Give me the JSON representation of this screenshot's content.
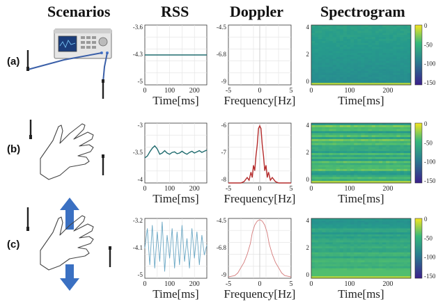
{
  "headers": {
    "scenarios": "Scenarios",
    "rss": "RSS",
    "doppler": "Doppler",
    "spectrogram": "Spectrogram"
  },
  "rows": [
    {
      "label": "(a)"
    },
    {
      "label": "(b)"
    },
    {
      "label": "(c)"
    }
  ],
  "colors": {
    "rss_line": "#1f6b6e",
    "rss_line_noisy": "#6aa7c4",
    "doppler_line": "#b42a2a",
    "doppler_line_light": "#d47a7a",
    "arrow": "#3a70c2"
  },
  "chart_data": [
    {
      "type": "line",
      "row": "a",
      "panel": "rss",
      "xlabel": "Time[ms]",
      "x_ticks": [
        "0",
        "100",
        "200"
      ],
      "xlim": [
        0,
        250
      ],
      "y_ticks": [
        "-3.6",
        "-4.3",
        "-5"
      ],
      "ylim": [
        -5,
        -3.6
      ],
      "series": [
        {
          "x": [
            0,
            250
          ],
          "y": [
            -4.3,
            -4.3
          ]
        }
      ]
    },
    {
      "type": "line",
      "row": "a",
      "panel": "doppler",
      "xlabel": "Frequency[Hz]",
      "x_ticks": [
        "-5",
        "0",
        "5"
      ],
      "xlim": [
        -5,
        5
      ],
      "y_ticks": [
        "-4.5",
        "-6.8",
        "-9"
      ],
      "ylim": [
        -9,
        -4.5
      ],
      "series": []
    },
    {
      "type": "heatmap",
      "row": "a",
      "panel": "spectrogram",
      "xlabel": "Time[ms]",
      "x_ticks": [
        "0",
        "100",
        "200"
      ],
      "xlim": [
        0,
        260
      ],
      "y_ticks": [
        "4",
        "2",
        "0"
      ],
      "ylim": [
        0,
        4
      ],
      "colorbar_ticks": [
        "0",
        "-50",
        "-100",
        "-150"
      ],
      "clim": [
        -150,
        0
      ],
      "pattern": "uniform"
    },
    {
      "type": "line",
      "row": "b",
      "panel": "rss",
      "xlabel": "Time[ms]",
      "x_ticks": [
        "0",
        "100",
        "200"
      ],
      "xlim": [
        0,
        250
      ],
      "y_ticks": [
        "-3",
        "-3.5",
        "-4"
      ],
      "ylim": [
        -4,
        -3
      ],
      "series": [
        {
          "x": [
            0,
            10,
            20,
            30,
            40,
            50,
            60,
            70,
            80,
            90,
            100,
            110,
            120,
            130,
            140,
            150,
            160,
            170,
            180,
            190,
            200,
            210,
            220,
            230,
            240,
            250
          ],
          "y": [
            -3.58,
            -3.55,
            -3.48,
            -3.42,
            -3.38,
            -3.43,
            -3.52,
            -3.5,
            -3.46,
            -3.5,
            -3.52,
            -3.49,
            -3.48,
            -3.51,
            -3.5,
            -3.47,
            -3.5,
            -3.52,
            -3.49,
            -3.47,
            -3.5,
            -3.48,
            -3.46,
            -3.49,
            -3.47,
            -3.45
          ]
        }
      ]
    },
    {
      "type": "line",
      "row": "b",
      "panel": "doppler",
      "xlabel": "Frequency[Hz]",
      "x_ticks": [
        "-5",
        "0",
        "5"
      ],
      "xlim": [
        -5,
        5
      ],
      "y_ticks": [
        "-6",
        "-7",
        "-8"
      ],
      "ylim": [
        -8,
        -5.8
      ],
      "series": [
        {
          "x": [
            -5,
            -3,
            -2.5,
            -2,
            -1.7,
            -1.4,
            -1.2,
            -1,
            -0.8,
            -0.6,
            -0.4,
            -0.2,
            0,
            0.2,
            0.4,
            0.6,
            0.8,
            1,
            1.2,
            1.4,
            1.7,
            2,
            2.5,
            3,
            5
          ],
          "y": [
            -8,
            -8,
            -7.95,
            -7.8,
            -7.9,
            -7.6,
            -7.8,
            -7.35,
            -7.55,
            -7.0,
            -6.6,
            -6.0,
            -5.9,
            -6.0,
            -6.6,
            -7.0,
            -7.55,
            -7.35,
            -7.8,
            -7.6,
            -7.9,
            -7.8,
            -7.95,
            -8,
            -8
          ]
        }
      ]
    },
    {
      "type": "heatmap",
      "row": "b",
      "panel": "spectrogram",
      "xlabel": "Time[ms]",
      "x_ticks": [
        "0",
        "100",
        "200"
      ],
      "xlim": [
        0,
        260
      ],
      "y_ticks": [
        "4",
        "2",
        "0"
      ],
      "ylim": [
        0,
        4
      ],
      "colorbar_ticks": [
        "0",
        "-50",
        "-100",
        "-150"
      ],
      "clim": [
        -150,
        0
      ],
      "pattern": "banded"
    },
    {
      "type": "line",
      "row": "c",
      "panel": "rss",
      "xlabel": "Time[ms]",
      "x_ticks": [
        "0",
        "100",
        "200"
      ],
      "xlim": [
        0,
        250
      ],
      "y_ticks": [
        "-3.2",
        "-4.1",
        "-5"
      ],
      "ylim": [
        -5,
        -3.2
      ],
      "series": [
        {
          "x": [
            0,
            10,
            20,
            30,
            40,
            50,
            60,
            70,
            80,
            90,
            100,
            110,
            120,
            130,
            140,
            150,
            160,
            170,
            180,
            190,
            200,
            210,
            220,
            230,
            240,
            250
          ],
          "y": [
            -4.1,
            -3.5,
            -4.6,
            -3.4,
            -4.7,
            -3.6,
            -4.5,
            -3.3,
            -4.8,
            -3.7,
            -4.4,
            -3.5,
            -4.7,
            -3.6,
            -4.6,
            -3.4,
            -4.5,
            -3.8,
            -4.7,
            -3.5,
            -4.4,
            -3.6,
            -4.6,
            -3.7,
            -4.3,
            -4.0
          ]
        }
      ]
    },
    {
      "type": "line",
      "row": "c",
      "panel": "doppler",
      "xlabel": "Frequency[Hz]",
      "x_ticks": [
        "-5",
        "0",
        "5"
      ],
      "xlim": [
        -5,
        5
      ],
      "y_ticks": [
        "-4.5",
        "-6.8",
        "-9"
      ],
      "ylim": [
        -9,
        -4.5
      ],
      "series": [
        {
          "x": [
            -5,
            -4,
            -3.5,
            -3,
            -2.5,
            -2,
            -1.5,
            -1.2,
            -0.8,
            -0.4,
            0,
            0.4,
            0.8,
            1.2,
            1.5,
            2,
            2.5,
            3,
            3.5,
            4,
            5
          ],
          "y": [
            -8.9,
            -8.8,
            -8.6,
            -8.2,
            -7.8,
            -7.2,
            -6.4,
            -5.6,
            -5.0,
            -4.7,
            -4.6,
            -4.7,
            -5.0,
            -5.6,
            -6.4,
            -7.2,
            -7.8,
            -8.2,
            -8.6,
            -8.8,
            -8.9
          ]
        }
      ]
    },
    {
      "type": "heatmap",
      "row": "c",
      "panel": "spectrogram",
      "xlabel": "Time[ms]",
      "x_ticks": [
        "0",
        "100",
        "200"
      ],
      "xlim": [
        0,
        260
      ],
      "y_ticks": [
        "4",
        "2",
        "0"
      ],
      "ylim": [
        0,
        4
      ],
      "colorbar_ticks": [
        "0",
        "-50",
        "-100",
        "-150"
      ],
      "clim": [
        -150,
        0
      ],
      "pattern": "lowband"
    }
  ]
}
